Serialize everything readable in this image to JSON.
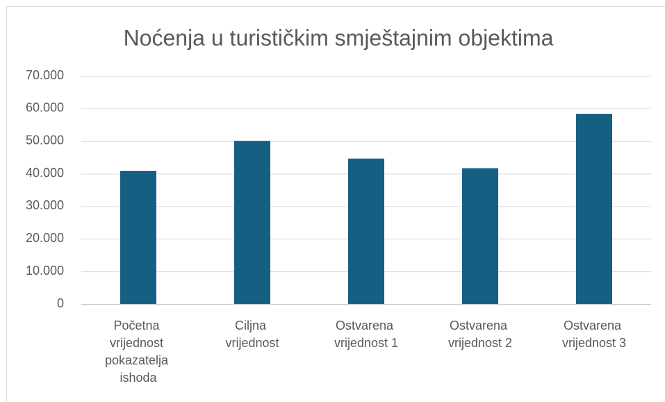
{
  "chart_data": {
    "type": "bar",
    "title": "Noćenja u turističkim smještajnim objektima",
    "categories": [
      "Početna vrijednost pokazatelja ishoda",
      "Ciljna vrijednost",
      "Ostvarena vrijednost 1",
      "Ostvarena vrijednost 2",
      "Ostvarena vrijednost 3"
    ],
    "values": [
      40800,
      50000,
      44600,
      41600,
      58300
    ],
    "color": "#156082",
    "ylim": [
      0,
      70000
    ],
    "yticks": [
      0,
      {
        "value": 10000,
        "label": "10.000"
      },
      {
        "value": 20000,
        "label": "20.000"
      },
      {
        "value": 30000,
        "label": "30.000"
      },
      {
        "value": 40000,
        "label": "40.000"
      },
      {
        "value": 50000,
        "label": "50.000"
      },
      {
        "value": 60000,
        "label": "60.000"
      },
      {
        "value": 70000,
        "label": "70.000"
      }
    ],
    "grid": true
  }
}
